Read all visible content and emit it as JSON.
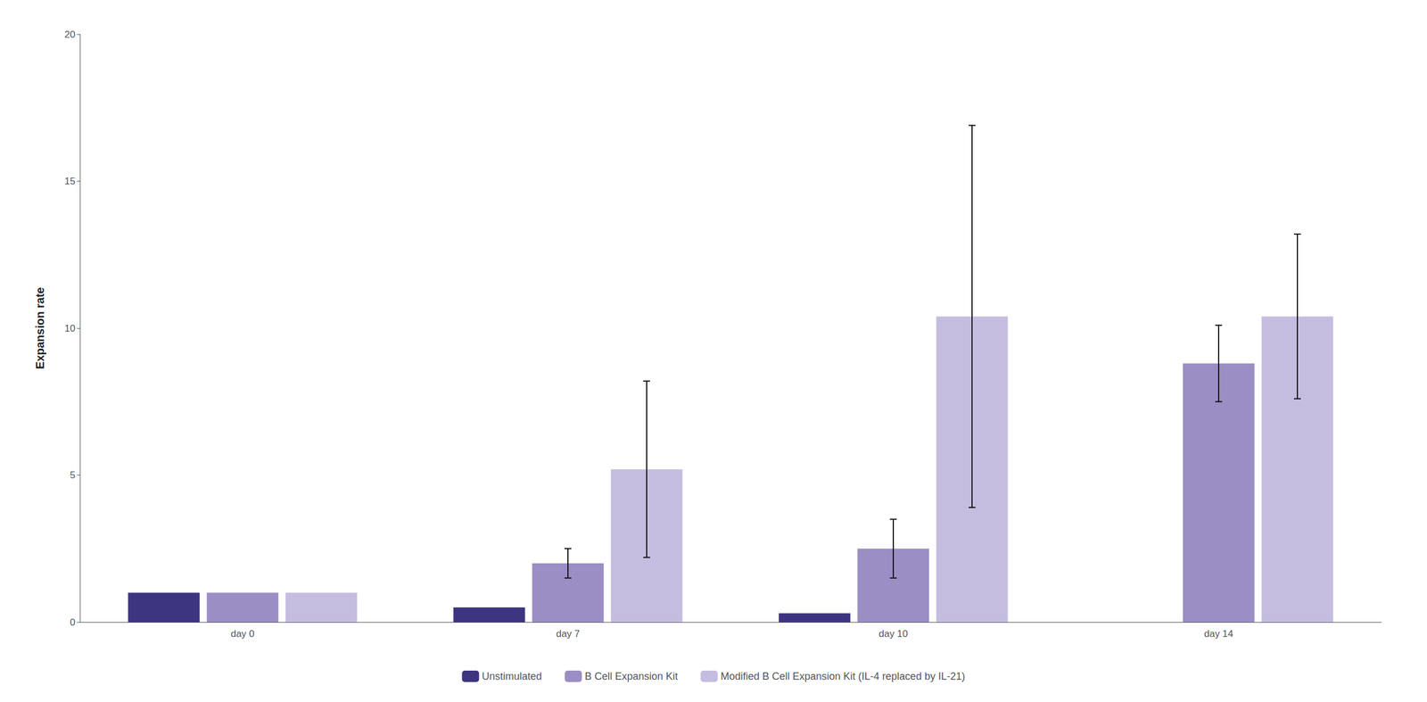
{
  "chart_data": {
    "type": "bar",
    "categories": [
      "day 0",
      "day 7",
      "day 10",
      "day 14"
    ],
    "series": [
      {
        "name": "Unstimulated",
        "color": "#3d3580",
        "values": [
          1.0,
          0.5,
          0.3,
          0.0
        ],
        "errors": [
          0.0,
          0.0,
          0.0,
          0.0
        ]
      },
      {
        "name": "B Cell Expansion Kit",
        "color": "#9b8ec4",
        "values": [
          1.0,
          2.0,
          2.5,
          8.8
        ],
        "errors": [
          0.0,
          0.5,
          1.0,
          1.3
        ]
      },
      {
        "name": "Modified B Cell Expansion Kit (IL-4 replaced by IL-21)",
        "color": "#c5bde0",
        "values": [
          1.0,
          5.2,
          10.4,
          10.4
        ],
        "errors": [
          0.0,
          3.0,
          6.5,
          2.8
        ]
      }
    ],
    "ylabel": "Expansion rate",
    "ylim": [
      0,
      20
    ],
    "yticks": [
      0,
      5,
      10,
      15,
      20
    ],
    "grid": false,
    "legend": "bottom"
  }
}
